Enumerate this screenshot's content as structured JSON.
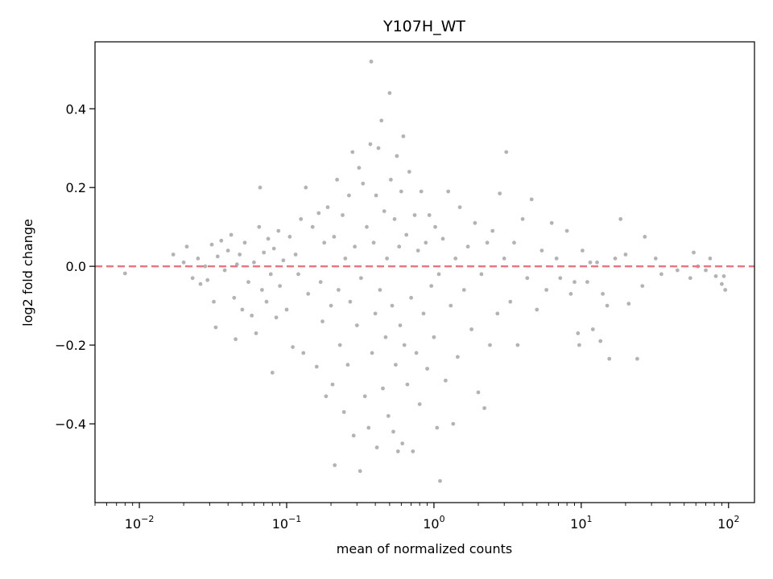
{
  "chart_data": {
    "type": "scatter",
    "title": "Y107H_WT",
    "xlabel": "mean of normalized counts",
    "ylabel": "log2 fold change",
    "xscale": "log",
    "xlim": [
      0.005,
      150
    ],
    "ylim": [
      -0.6,
      0.57
    ],
    "x_ticks": [
      {
        "value": 0.01,
        "base": "10",
        "exp": "−2"
      },
      {
        "value": 0.1,
        "base": "10",
        "exp": "−1"
      },
      {
        "value": 1,
        "base": "10",
        "exp": "0"
      },
      {
        "value": 10,
        "base": "10",
        "exp": "1"
      },
      {
        "value": 100,
        "base": "10",
        "exp": "2"
      }
    ],
    "y_ticks": [
      {
        "value": 0.4,
        "label": "0.4"
      },
      {
        "value": 0.2,
        "label": "0.2"
      },
      {
        "value": 0.0,
        "label": "0.0"
      },
      {
        "value": -0.2,
        "label": "−0.2"
      },
      {
        "value": -0.4,
        "label": "−0.4"
      }
    ],
    "grid": false,
    "reference_line": {
      "y": 0,
      "color": "#e8767a",
      "style": "dashed"
    },
    "point_color": "#808080",
    "points": [
      [
        0.008,
        -0.018
      ],
      [
        0.017,
        0.03
      ],
      [
        0.02,
        0.01
      ],
      [
        0.021,
        0.05
      ],
      [
        0.023,
        -0.03
      ],
      [
        0.025,
        0.02
      ],
      [
        0.026,
        -0.045
      ],
      [
        0.028,
        0.0
      ],
      [
        0.029,
        -0.035
      ],
      [
        0.031,
        0.055
      ],
      [
        0.032,
        -0.09
      ],
      [
        0.033,
        -0.155
      ],
      [
        0.034,
        0.025
      ],
      [
        0.036,
        0.065
      ],
      [
        0.038,
        -0.01
      ],
      [
        0.04,
        0.04
      ],
      [
        0.042,
        0.08
      ],
      [
        0.044,
        -0.08
      ],
      [
        0.045,
        -0.185
      ],
      [
        0.046,
        0.005
      ],
      [
        0.048,
        0.03
      ],
      [
        0.05,
        -0.11
      ],
      [
        0.052,
        0.06
      ],
      [
        0.055,
        -0.04
      ],
      [
        0.058,
        -0.125
      ],
      [
        0.06,
        0.01
      ],
      [
        0.062,
        -0.17
      ],
      [
        0.065,
        0.1
      ],
      [
        0.066,
        0.2
      ],
      [
        0.068,
        -0.06
      ],
      [
        0.07,
        0.035
      ],
      [
        0.073,
        -0.09
      ],
      [
        0.075,
        0.07
      ],
      [
        0.078,
        -0.02
      ],
      [
        0.08,
        -0.27
      ],
      [
        0.082,
        0.045
      ],
      [
        0.085,
        -0.13
      ],
      [
        0.088,
        0.09
      ],
      [
        0.09,
        -0.05
      ],
      [
        0.095,
        0.015
      ],
      [
        0.1,
        -0.11
      ],
      [
        0.105,
        0.075
      ],
      [
        0.11,
        -0.205
      ],
      [
        0.115,
        0.03
      ],
      [
        0.12,
        -0.02
      ],
      [
        0.125,
        0.12
      ],
      [
        0.13,
        -0.22
      ],
      [
        0.135,
        0.2
      ],
      [
        0.14,
        -0.07
      ],
      [
        0.15,
        0.1
      ],
      [
        0.16,
        -0.255
      ],
      [
        0.165,
        0.135
      ],
      [
        0.17,
        -0.04
      ],
      [
        0.175,
        -0.14
      ],
      [
        0.18,
        0.06
      ],
      [
        0.185,
        -0.33
      ],
      [
        0.19,
        0.15
      ],
      [
        0.2,
        -0.1
      ],
      [
        0.205,
        -0.3
      ],
      [
        0.21,
        0.075
      ],
      [
        0.212,
        -0.505
      ],
      [
        0.22,
        0.22
      ],
      [
        0.225,
        -0.06
      ],
      [
        0.23,
        -0.2
      ],
      [
        0.24,
        0.13
      ],
      [
        0.245,
        -0.37
      ],
      [
        0.25,
        0.02
      ],
      [
        0.26,
        -0.25
      ],
      [
        0.265,
        0.18
      ],
      [
        0.27,
        -0.09
      ],
      [
        0.28,
        0.29
      ],
      [
        0.285,
        -0.43
      ],
      [
        0.29,
        0.05
      ],
      [
        0.3,
        -0.15
      ],
      [
        0.31,
        0.25
      ],
      [
        0.315,
        -0.52
      ],
      [
        0.32,
        -0.03
      ],
      [
        0.33,
        0.21
      ],
      [
        0.34,
        -0.33
      ],
      [
        0.35,
        0.1
      ],
      [
        0.36,
        -0.41
      ],
      [
        0.37,
        0.31
      ],
      [
        0.375,
        0.52
      ],
      [
        0.38,
        -0.22
      ],
      [
        0.39,
        0.06
      ],
      [
        0.4,
        -0.12
      ],
      [
        0.405,
        0.18
      ],
      [
        0.41,
        -0.46
      ],
      [
        0.42,
        0.3
      ],
      [
        0.43,
        -0.06
      ],
      [
        0.44,
        0.37
      ],
      [
        0.45,
        -0.31
      ],
      [
        0.46,
        0.14
      ],
      [
        0.47,
        -0.18
      ],
      [
        0.48,
        0.02
      ],
      [
        0.49,
        -0.38
      ],
      [
        0.5,
        0.44
      ],
      [
        0.51,
        0.22
      ],
      [
        0.52,
        -0.1
      ],
      [
        0.53,
        -0.42
      ],
      [
        0.54,
        0.12
      ],
      [
        0.55,
        -0.25
      ],
      [
        0.56,
        0.28
      ],
      [
        0.57,
        -0.47
      ],
      [
        0.58,
        0.05
      ],
      [
        0.59,
        -0.15
      ],
      [
        0.6,
        0.19
      ],
      [
        0.61,
        -0.45
      ],
      [
        0.62,
        0.33
      ],
      [
        0.63,
        -0.2
      ],
      [
        0.65,
        0.08
      ],
      [
        0.66,
        -0.3
      ],
      [
        0.68,
        0.24
      ],
      [
        0.7,
        -0.08
      ],
      [
        0.72,
        -0.47
      ],
      [
        0.74,
        0.13
      ],
      [
        0.76,
        -0.22
      ],
      [
        0.78,
        0.04
      ],
      [
        0.8,
        -0.35
      ],
      [
        0.82,
        0.19
      ],
      [
        0.85,
        -0.12
      ],
      [
        0.88,
        0.06
      ],
      [
        0.9,
        -0.26
      ],
      [
        0.93,
        0.13
      ],
      [
        0.96,
        -0.05
      ],
      [
        1.0,
        -0.18
      ],
      [
        1.02,
        0.1
      ],
      [
        1.05,
        -0.41
      ],
      [
        1.08,
        -0.02
      ],
      [
        1.1,
        -0.545
      ],
      [
        1.15,
        0.07
      ],
      [
        1.2,
        -0.29
      ],
      [
        1.25,
        0.19
      ],
      [
        1.3,
        -0.1
      ],
      [
        1.35,
        -0.4
      ],
      [
        1.4,
        0.02
      ],
      [
        1.45,
        -0.23
      ],
      [
        1.5,
        0.15
      ],
      [
        1.6,
        -0.06
      ],
      [
        1.7,
        0.05
      ],
      [
        1.8,
        -0.16
      ],
      [
        1.9,
        0.11
      ],
      [
        2.0,
        -0.32
      ],
      [
        2.1,
        -0.02
      ],
      [
        2.2,
        -0.36
      ],
      [
        2.3,
        0.06
      ],
      [
        2.4,
        -0.2
      ],
      [
        2.5,
        0.09
      ],
      [
        2.7,
        -0.12
      ],
      [
        2.8,
        0.185
      ],
      [
        3.0,
        0.02
      ],
      [
        3.1,
        0.29
      ],
      [
        3.3,
        -0.09
      ],
      [
        3.5,
        0.06
      ],
      [
        3.7,
        -0.2
      ],
      [
        4.0,
        0.12
      ],
      [
        4.3,
        -0.03
      ],
      [
        4.6,
        0.17
      ],
      [
        5.0,
        -0.11
      ],
      [
        5.4,
        0.04
      ],
      [
        5.8,
        -0.06
      ],
      [
        6.3,
        0.11
      ],
      [
        6.8,
        0.02
      ],
      [
        7.2,
        -0.03
      ],
      [
        8.0,
        0.09
      ],
      [
        8.5,
        -0.07
      ],
      [
        9.0,
        -0.04
      ],
      [
        9.5,
        -0.17
      ],
      [
        9.7,
        -0.2
      ],
      [
        10.2,
        0.04
      ],
      [
        11.0,
        -0.04
      ],
      [
        11.5,
        0.01
      ],
      [
        12.0,
        -0.16
      ],
      [
        12.8,
        0.01
      ],
      [
        13.5,
        -0.19
      ],
      [
        14.0,
        -0.07
      ],
      [
        15.0,
        -0.1
      ],
      [
        15.5,
        -0.235
      ],
      [
        17.0,
        0.02
      ],
      [
        18.5,
        0.12
      ],
      [
        20.0,
        0.03
      ],
      [
        21.0,
        -0.095
      ],
      [
        24.0,
        -0.235
      ],
      [
        26.0,
        -0.05
      ],
      [
        27.0,
        0.075
      ],
      [
        32.0,
        0.02
      ],
      [
        35.0,
        -0.02
      ],
      [
        45.0,
        -0.01
      ],
      [
        55.0,
        -0.03
      ],
      [
        58.0,
        0.035
      ],
      [
        62.0,
        0.0
      ],
      [
        70.0,
        -0.01
      ],
      [
        75.0,
        0.02
      ],
      [
        82.0,
        -0.025
      ],
      [
        90.0,
        -0.045
      ],
      [
        93.0,
        -0.025
      ],
      [
        95.0,
        -0.06
      ]
    ]
  }
}
